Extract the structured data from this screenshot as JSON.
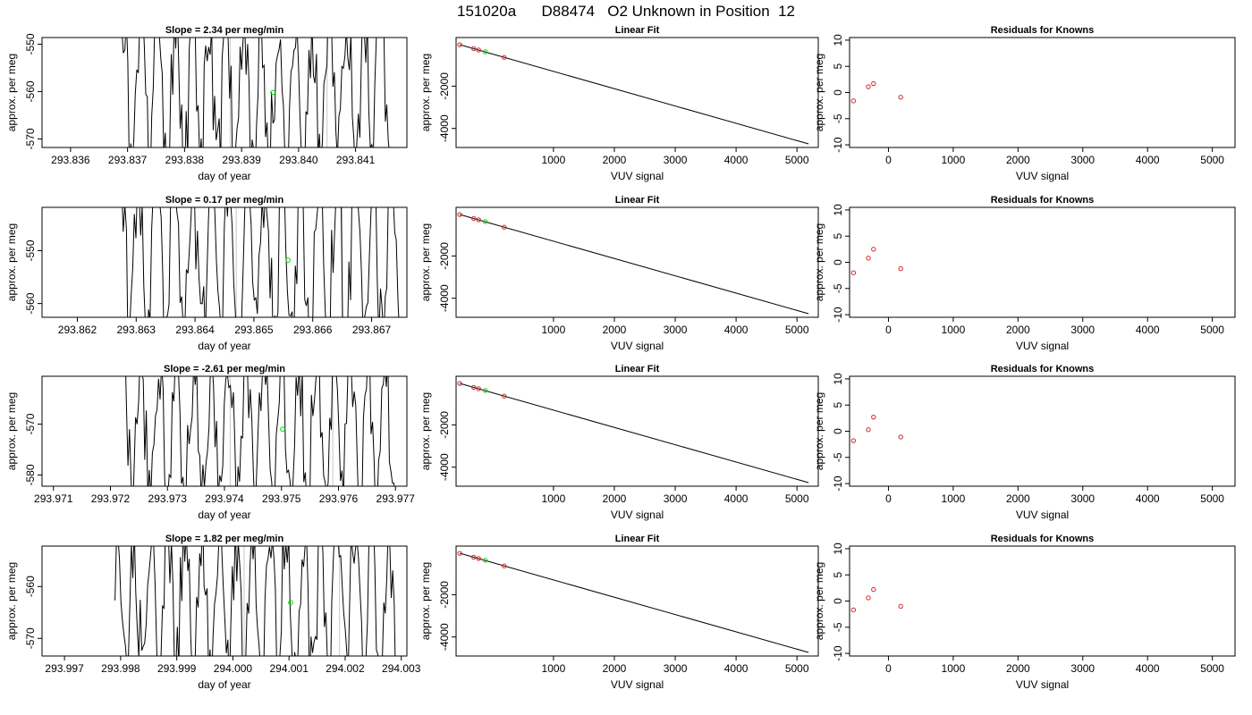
{
  "title": "151020a      D88474   O2 Unknown in Position  12",
  "colors": {
    "line": "#000000",
    "known_point": "#d62728",
    "unknown_point": "#00dd00",
    "gridline": "#c8c8c8"
  },
  "chart_data": [
    {
      "type": "line",
      "row": 0,
      "panel": "time",
      "title": "Slope =  2.34  per meg/min",
      "xlabel": "day of year",
      "ylabel": "approx. per meg",
      "xlim": [
        293.8355,
        293.8419
      ],
      "xticks": [
        "293.836",
        "293.837",
        "293.838",
        "293.839",
        "293.840",
        "293.841"
      ],
      "ylim": [
        -571.8,
        -548.6
      ],
      "yticks": [
        "-550",
        "-560",
        "-570"
      ],
      "vlines": [
        293.8388,
        293.8405
      ],
      "point": {
        "x": 293.83955,
        "y": -560.2
      },
      "series": {
        "x_start": 293.8369,
        "x_end": 293.8416,
        "n": 180,
        "center": -560,
        "amplitude": 18,
        "seed": 11
      }
    },
    {
      "type": "scatter",
      "row": 0,
      "panel": "fit",
      "title": "Linear Fit",
      "xlabel": "VUV signal",
      "ylabel": "approx. per meg",
      "xlim": [
        -600,
        5350
      ],
      "xticks": [
        "1000",
        "2000",
        "3000",
        "4000",
        "5000"
      ],
      "ylim": [
        -4900,
        300
      ],
      "yticks": [
        "-2000",
        "-4000"
      ],
      "fit_line": {
        "x": [
          -540,
          5190
        ],
        "y": [
          -40,
          -4730
        ]
      },
      "knowns": {
        "x": [
          -540,
          -310,
          -230,
          190
        ],
        "y": [
          -40,
          -225,
          -290,
          -640
        ]
      },
      "unknown": {
        "x": -120,
        "y": -375
      }
    },
    {
      "type": "scatter",
      "row": 0,
      "panel": "residuals",
      "title": "Residuals for Knowns",
      "xlabel": "VUV signal",
      "ylabel": "approx. per meg",
      "xlim": [
        -600,
        5350
      ],
      "xticks": [
        "0",
        "1000",
        "2000",
        "3000",
        "4000",
        "5000"
      ],
      "ylim": [
        -10.5,
        10.5
      ],
      "yticks": [
        "10",
        "5",
        "0",
        "-5",
        "-10"
      ],
      "knowns": {
        "x": [
          -540,
          -310,
          -230,
          190
        ],
        "y": [
          -1.6,
          1.1,
          1.7,
          -0.9
        ]
      }
    },
    {
      "type": "line",
      "row": 1,
      "panel": "time",
      "title": "Slope =  0.17  per meg/min",
      "xlabel": "day of year",
      "ylabel": "approx. per meg",
      "xlim": [
        293.8614,
        293.8676
      ],
      "xticks": [
        "293.862",
        "293.863",
        "293.864",
        "293.865",
        "293.866",
        "293.867"
      ],
      "ylim": [
        -562.6,
        -541.8
      ],
      "yticks": [
        "-550",
        "-560"
      ],
      "vlines": [
        293.8647,
        293.8665
      ],
      "point": {
        "x": 293.86558,
        "y": -551.8
      },
      "series": {
        "x_start": 293.8627,
        "x_end": 293.8675,
        "n": 180,
        "center": -552,
        "amplitude": 17,
        "seed": 23
      }
    },
    {
      "type": "scatter",
      "row": 1,
      "panel": "fit",
      "title": "Linear Fit",
      "xlabel": "VUV signal",
      "ylabel": "approx. per meg",
      "xlim": [
        -600,
        5350
      ],
      "xticks": [
        "1000",
        "2000",
        "3000",
        "4000",
        "5000"
      ],
      "ylim": [
        -4900,
        300
      ],
      "yticks": [
        "-2000",
        "-4000"
      ],
      "fit_line": {
        "x": [
          -540,
          5190
        ],
        "y": [
          -40,
          -4730
        ]
      },
      "knowns": {
        "x": [
          -540,
          -310,
          -230,
          190
        ],
        "y": [
          -40,
          -225,
          -290,
          -640
        ]
      },
      "unknown": {
        "x": -120,
        "y": -375
      }
    },
    {
      "type": "scatter",
      "row": 1,
      "panel": "residuals",
      "title": "Residuals for Knowns",
      "xlabel": "VUV signal",
      "ylabel": "approx. per meg",
      "xlim": [
        -600,
        5350
      ],
      "xticks": [
        "0",
        "1000",
        "2000",
        "3000",
        "4000",
        "5000"
      ],
      "ylim": [
        -10.5,
        10.5
      ],
      "yticks": [
        "10",
        "5",
        "0",
        "-5",
        "-10"
      ],
      "knowns": {
        "x": [
          -540,
          -310,
          -230,
          190
        ],
        "y": [
          -2.0,
          0.8,
          2.5,
          -1.2
        ]
      }
    },
    {
      "type": "line",
      "row": 2,
      "panel": "time",
      "title": "Slope =  -2.61  per meg/min",
      "xlabel": "day of year",
      "ylabel": "approx. per meg",
      "xlim": [
        293.9708,
        293.9772
      ],
      "xticks": [
        "293.971",
        "293.972",
        "293.973",
        "293.974",
        "293.975",
        "293.976",
        "293.977"
      ],
      "ylim": [
        -582.2,
        -560.6
      ],
      "yticks": [
        "-570",
        "-580"
      ],
      "vlines": [
        293.9741,
        293.9759
      ],
      "point": {
        "x": 293.97502,
        "y": -571.0
      },
      "series": {
        "x_start": 293.9722,
        "x_end": 293.977,
        "n": 180,
        "center": -571,
        "amplitude": 16,
        "seed": 37
      }
    },
    {
      "type": "scatter",
      "row": 2,
      "panel": "fit",
      "title": "Linear Fit",
      "xlabel": "VUV signal",
      "ylabel": "approx. per meg",
      "xlim": [
        -600,
        5350
      ],
      "xticks": [
        "1000",
        "2000",
        "3000",
        "4000",
        "5000"
      ],
      "ylim": [
        -4900,
        300
      ],
      "yticks": [
        "-2000",
        "-4000"
      ],
      "fit_line": {
        "x": [
          -540,
          5190
        ],
        "y": [
          -40,
          -4730
        ]
      },
      "knowns": {
        "x": [
          -540,
          -310,
          -230,
          190
        ],
        "y": [
          -40,
          -225,
          -290,
          -640
        ]
      },
      "unknown": {
        "x": -120,
        "y": -375
      }
    },
    {
      "type": "scatter",
      "row": 2,
      "panel": "residuals",
      "title": "Residuals for Knowns",
      "xlabel": "VUV signal",
      "ylabel": "approx. per meg",
      "xlim": [
        -600,
        5350
      ],
      "xticks": [
        "0",
        "1000",
        "2000",
        "3000",
        "4000",
        "5000"
      ],
      "ylim": [
        -10.5,
        10.5
      ],
      "yticks": [
        "10",
        "5",
        "0",
        "-5",
        "-10"
      ],
      "knowns": {
        "x": [
          -540,
          -310,
          -230,
          190
        ],
        "y": [
          -1.8,
          0.3,
          2.7,
          -1.1
        ]
      }
    },
    {
      "type": "line",
      "row": 3,
      "panel": "time",
      "title": "Slope =  1.82  per meg/min",
      "xlabel": "day of year",
      "ylabel": "approx. per meg",
      "xlim": [
        293.9966,
        294.0031
      ],
      "xticks": [
        "293.997",
        "293.998",
        "293.999",
        "294.000",
        "294.001",
        "294.002",
        "294.003"
      ],
      "ylim": [
        -573.4,
        -552.2
      ],
      "yticks": [
        "-560",
        "-570"
      ],
      "vlines": [
        294.0002,
        294.0019
      ],
      "point": {
        "x": 294.00103,
        "y": -563.1
      },
      "series": {
        "x_start": 293.9979,
        "x_end": 294.0029,
        "n": 190,
        "center": -563,
        "amplitude": 16,
        "seed": 53
      }
    },
    {
      "type": "scatter",
      "row": 3,
      "panel": "fit",
      "title": "Linear Fit",
      "xlabel": "VUV signal",
      "ylabel": "approx. per meg",
      "xlim": [
        -600,
        5350
      ],
      "xticks": [
        "1000",
        "2000",
        "3000",
        "4000",
        "5000"
      ],
      "ylim": [
        -4900,
        300
      ],
      "yticks": [
        "-2000",
        "-4000"
      ],
      "fit_line": {
        "x": [
          -540,
          5190
        ],
        "y": [
          -40,
          -4730
        ]
      },
      "knowns": {
        "x": [
          -540,
          -310,
          -230,
          190
        ],
        "y": [
          -40,
          -225,
          -290,
          -640
        ]
      },
      "unknown": {
        "x": -120,
        "y": -375
      }
    },
    {
      "type": "scatter",
      "row": 3,
      "panel": "residuals",
      "title": "Residuals for Knowns",
      "xlabel": "VUV signal",
      "ylabel": "approx. per meg",
      "xlim": [
        -600,
        5350
      ],
      "xticks": [
        "0",
        "1000",
        "2000",
        "3000",
        "4000",
        "5000"
      ],
      "ylim": [
        -10.5,
        10.5
      ],
      "yticks": [
        "10",
        "5",
        "0",
        "-5",
        "-10"
      ],
      "knowns": {
        "x": [
          -540,
          -310,
          -230,
          190
        ],
        "y": [
          -1.7,
          0.6,
          2.2,
          -1.0
        ]
      }
    }
  ]
}
